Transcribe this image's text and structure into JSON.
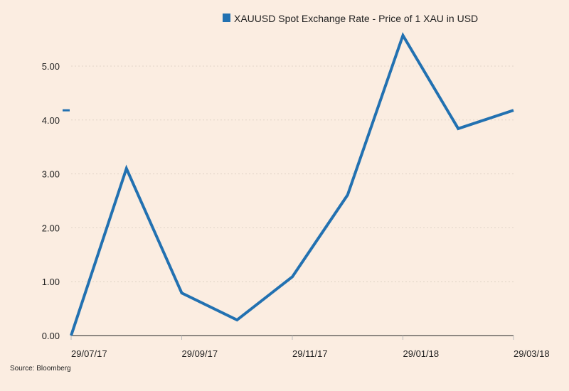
{
  "chart_data": {
    "type": "line",
    "title": "",
    "legend": [
      "XAUUSD Spot Exchange Rate - Price of 1 XAU in USD"
    ],
    "legend_position": "top",
    "source": "Source: Bloomberg",
    "xlabel": "",
    "ylabel": "",
    "x_ticks": [
      "29/07/17",
      "29/09/17",
      "29/11/17",
      "29/01/18",
      "29/03/18"
    ],
    "y_ticks": [
      "0.00",
      "1.00",
      "2.00",
      "3.00",
      "4.00",
      "5.00"
    ],
    "ylim": [
      0,
      5
    ],
    "grid": true,
    "series": [
      {
        "name": "XAUUSD Spot Exchange Rate - Price of 1 XAU in USD",
        "x_index": [
          0,
          0.5,
          1,
          1.5,
          2,
          2.5,
          3,
          3.5,
          4
        ],
        "values": [
          0.0,
          3.1,
          0.79,
          0.29,
          1.09,
          2.61,
          5.57,
          3.84,
          4.18
        ],
        "last_value_marker": 4.18
      }
    ],
    "colors": {
      "line": "#2271b1",
      "background": "#fbede1",
      "axis": "#222222",
      "grid": "#e0d3c6"
    }
  }
}
